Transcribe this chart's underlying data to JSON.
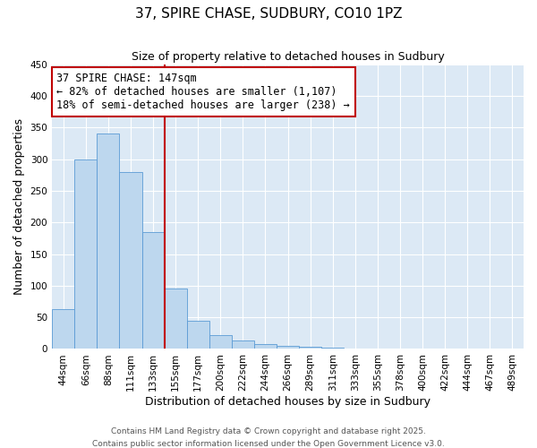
{
  "title": "37, SPIRE CHASE, SUDBURY, CO10 1PZ",
  "subtitle": "Size of property relative to detached houses in Sudbury",
  "xlabel": "Distribution of detached houses by size in Sudbury",
  "ylabel": "Number of detached properties",
  "bar_labels": [
    "44sqm",
    "66sqm",
    "88sqm",
    "111sqm",
    "133sqm",
    "155sqm",
    "177sqm",
    "200sqm",
    "222sqm",
    "244sqm",
    "266sqm",
    "289sqm",
    "311sqm",
    "333sqm",
    "355sqm",
    "378sqm",
    "400sqm",
    "422sqm",
    "444sqm",
    "467sqm",
    "489sqm"
  ],
  "bar_values": [
    63,
    300,
    340,
    280,
    185,
    95,
    45,
    22,
    14,
    8,
    5,
    3,
    2,
    1,
    1,
    0,
    1,
    0,
    1,
    0,
    0
  ],
  "bar_color": "#bdd7ee",
  "bar_edge_color": "#5b9bd5",
  "vline_x_index": 4.5,
  "vline_color": "#c00000",
  "annotation_title": "37 SPIRE CHASE: 147sqm",
  "annotation_line1": "← 82% of detached houses are smaller (1,107)",
  "annotation_line2": "18% of semi-detached houses are larger (238) →",
  "annotation_box_color": "#c00000",
  "ylim": [
    0,
    450
  ],
  "yticks": [
    0,
    50,
    100,
    150,
    200,
    250,
    300,
    350,
    400,
    450
  ],
  "plot_bg_color": "#dce9f5",
  "grid_color": "#ffffff",
  "footer1": "Contains HM Land Registry data © Crown copyright and database right 2025.",
  "footer2": "Contains public sector information licensed under the Open Government Licence v3.0.",
  "title_fontsize": 11,
  "subtitle_fontsize": 9,
  "axis_label_fontsize": 9,
  "tick_fontsize": 7.5,
  "annotation_fontsize": 8.5,
  "footer_fontsize": 6.5
}
